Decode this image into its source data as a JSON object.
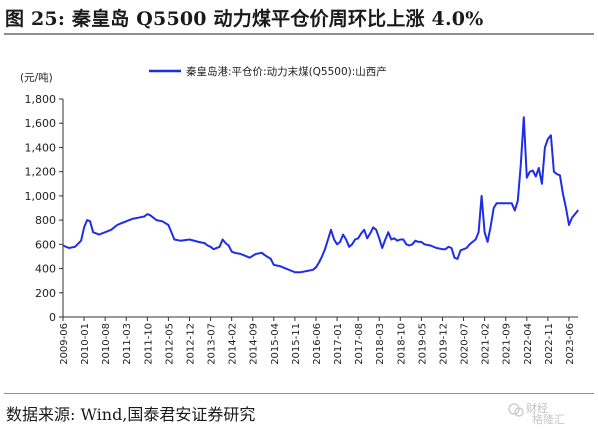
{
  "figure": {
    "title": "图 25:  秦皇岛 Q5500 动力煤平仓价周环比上涨 4.0%",
    "source": "数据来源:  Wind,国泰君安证券研究",
    "watermark": "财经",
    "watermark_sub": "格隆汇"
  },
  "chart_data": {
    "type": "line",
    "title": "",
    "xlabel": "",
    "ylabel": "(元/吨)",
    "ylim": [
      0,
      1800
    ],
    "yticks": [
      0,
      200,
      400,
      600,
      800,
      1000,
      1200,
      1400,
      1600,
      1800
    ],
    "ytick_labels": [
      "0",
      "200",
      "400",
      "600",
      "800",
      "1,000",
      "1,200",
      "1,400",
      "1,600",
      "1,800"
    ],
    "xlim": [
      "2009-06",
      "2023-09"
    ],
    "xtick_labels": [
      "2009-06",
      "2010-01",
      "2010-08",
      "2011-03",
      "2011-10",
      "2012-05",
      "2012-12",
      "2013-07",
      "2014-02",
      "2014-09",
      "2015-04",
      "2015-11",
      "2016-06",
      "2017-01",
      "2017-08",
      "2018-03",
      "2018-10",
      "2019-05",
      "2019-12",
      "2020-07",
      "2021-02",
      "2021-09",
      "2022-04",
      "2022-11",
      "2023-06"
    ],
    "legend_position": "top",
    "grid": false,
    "color": "#1f2ee6",
    "series": [
      {
        "name": "秦皇岛港:平仓价:动力末煤(Q5500):山西产",
        "points": [
          [
            "2009-06",
            590
          ],
          [
            "2009-08",
            570
          ],
          [
            "2009-10",
            580
          ],
          [
            "2009-12",
            630
          ],
          [
            "2010-01",
            740
          ],
          [
            "2010-02",
            800
          ],
          [
            "2010-03",
            790
          ],
          [
            "2010-04",
            700
          ],
          [
            "2010-06",
            680
          ],
          [
            "2010-08",
            700
          ],
          [
            "2010-10",
            720
          ],
          [
            "2010-12",
            760
          ],
          [
            "2011-01",
            770
          ],
          [
            "2011-03",
            790
          ],
          [
            "2011-05",
            810
          ],
          [
            "2011-07",
            820
          ],
          [
            "2011-09",
            830
          ],
          [
            "2011-10",
            850
          ],
          [
            "2011-11",
            840
          ],
          [
            "2011-12",
            820
          ],
          [
            "2012-01",
            800
          ],
          [
            "2012-03",
            790
          ],
          [
            "2012-05",
            760
          ],
          [
            "2012-06",
            700
          ],
          [
            "2012-07",
            640
          ],
          [
            "2012-09",
            630
          ],
          [
            "2012-12",
            640
          ],
          [
            "2013-03",
            620
          ],
          [
            "2013-05",
            610
          ],
          [
            "2013-06",
            590
          ],
          [
            "2013-07",
            580
          ],
          [
            "2013-08",
            560
          ],
          [
            "2013-10",
            580
          ],
          [
            "2013-11",
            640
          ],
          [
            "2013-12",
            610
          ],
          [
            "2014-01",
            590
          ],
          [
            "2014-02",
            540
          ],
          [
            "2014-03",
            530
          ],
          [
            "2014-05",
            520
          ],
          [
            "2014-06",
            510
          ],
          [
            "2014-08",
            490
          ],
          [
            "2014-10",
            520
          ],
          [
            "2014-12",
            530
          ],
          [
            "2015-01",
            510
          ],
          [
            "2015-03",
            480
          ],
          [
            "2015-04",
            430
          ],
          [
            "2015-06",
            420
          ],
          [
            "2015-08",
            400
          ],
          [
            "2015-10",
            380
          ],
          [
            "2015-11",
            370
          ],
          [
            "2016-01",
            370
          ],
          [
            "2016-03",
            380
          ],
          [
            "2016-05",
            390
          ],
          [
            "2016-06",
            410
          ],
          [
            "2016-07",
            450
          ],
          [
            "2016-08",
            500
          ],
          [
            "2016-09",
            560
          ],
          [
            "2016-10",
            640
          ],
          [
            "2016-11",
            720
          ],
          [
            "2016-12",
            640
          ],
          [
            "2017-01",
            600
          ],
          [
            "2017-02",
            620
          ],
          [
            "2017-03",
            680
          ],
          [
            "2017-04",
            640
          ],
          [
            "2017-05",
            580
          ],
          [
            "2017-06",
            600
          ],
          [
            "2017-07",
            640
          ],
          [
            "2017-08",
            650
          ],
          [
            "2017-09",
            690
          ],
          [
            "2017-10",
            720
          ],
          [
            "2017-11",
            650
          ],
          [
            "2017-12",
            690
          ],
          [
            "2018-01",
            740
          ],
          [
            "2018-02",
            720
          ],
          [
            "2018-03",
            650
          ],
          [
            "2018-04",
            570
          ],
          [
            "2018-05",
            640
          ],
          [
            "2018-06",
            700
          ],
          [
            "2018-07",
            640
          ],
          [
            "2018-08",
            650
          ],
          [
            "2018-09",
            630
          ],
          [
            "2018-10",
            640
          ],
          [
            "2018-11",
            640
          ],
          [
            "2018-12",
            600
          ],
          [
            "2019-01",
            590
          ],
          [
            "2019-02",
            600
          ],
          [
            "2019-03",
            630
          ],
          [
            "2019-04",
            620
          ],
          [
            "2019-05",
            620
          ],
          [
            "2019-06",
            600
          ],
          [
            "2019-08",
            590
          ],
          [
            "2019-10",
            570
          ],
          [
            "2019-12",
            560
          ],
          [
            "2020-01",
            560
          ],
          [
            "2020-02",
            580
          ],
          [
            "2020-03",
            570
          ],
          [
            "2020-04",
            490
          ],
          [
            "2020-05",
            480
          ],
          [
            "2020-06",
            550
          ],
          [
            "2020-07",
            560
          ],
          [
            "2020-08",
            570
          ],
          [
            "2020-09",
            600
          ],
          [
            "2020-10",
            620
          ],
          [
            "2020-11",
            640
          ],
          [
            "2020-12",
            700
          ],
          [
            "2021-01",
            1000
          ],
          [
            "2021-02",
            700
          ],
          [
            "2021-03",
            620
          ],
          [
            "2021-04",
            750
          ],
          [
            "2021-05",
            900
          ],
          [
            "2021-06",
            940
          ],
          [
            "2021-07",
            940
          ],
          [
            "2021-08",
            940
          ],
          [
            "2021-09",
            940
          ],
          [
            "2021-10",
            940
          ],
          [
            "2021-11",
            940
          ],
          [
            "2021-12",
            880
          ],
          [
            "2022-01",
            960
          ],
          [
            "2022-02",
            1260
          ],
          [
            "2022-03",
            1650
          ],
          [
            "2022-04",
            1150
          ],
          [
            "2022-05",
            1200
          ],
          [
            "2022-06",
            1210
          ],
          [
            "2022-07",
            1160
          ],
          [
            "2022-08",
            1230
          ],
          [
            "2022-09",
            1100
          ],
          [
            "2022-10",
            1400
          ],
          [
            "2022-11",
            1470
          ],
          [
            "2022-12",
            1500
          ],
          [
            "2023-01",
            1200
          ],
          [
            "2023-02",
            1180
          ],
          [
            "2023-03",
            1170
          ],
          [
            "2023-04",
            1020
          ],
          [
            "2023-05",
            900
          ],
          [
            "2023-06",
            760
          ],
          [
            "2023-07",
            820
          ],
          [
            "2023-08",
            850
          ],
          [
            "2023-09",
            880
          ]
        ]
      }
    ]
  }
}
